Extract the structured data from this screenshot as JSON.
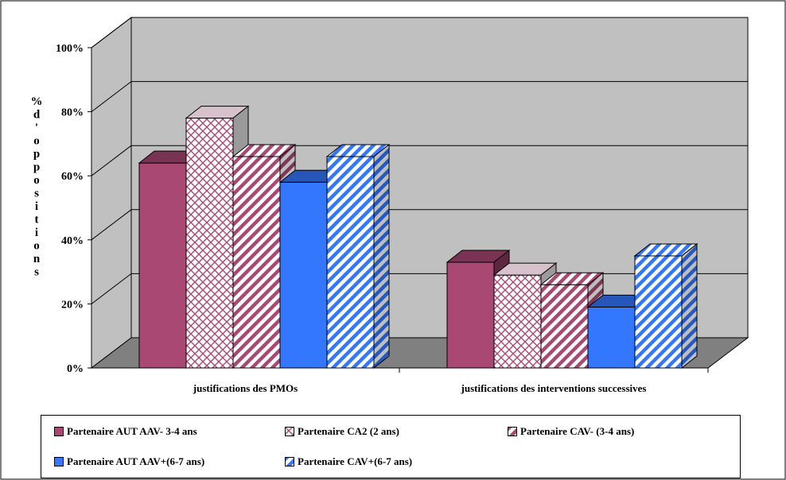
{
  "chart_data": {
    "type": "bar",
    "style": "3d-clustered",
    "categories": [
      "justifications des PMOs",
      "justifications des interventions successives"
    ],
    "series": [
      {
        "name": "Partenaire AUT AAV- 3-4 ans",
        "values": [
          64,
          33
        ],
        "color": "#A94873",
        "pattern": "solid"
      },
      {
        "name": "Partenaire CA2 (2 ans)",
        "values": [
          78,
          29
        ],
        "color": "#A94873",
        "pattern": "lattice"
      },
      {
        "name": "Partenaire CAV- (3-4 ans)",
        "values": [
          66,
          26
        ],
        "color": "#A94873",
        "pattern": "diagonal"
      },
      {
        "name": "Partenaire AUT AAV+(6-7 ans)",
        "values": [
          58,
          19
        ],
        "color": "#3377FF",
        "pattern": "solid"
      },
      {
        "name": "Partenaire CAV+(6-7 ans)",
        "values": [
          66,
          35
        ],
        "color": "#3377FF",
        "pattern": "diagonal"
      }
    ],
    "yticks": [
      "0%",
      "20%",
      "40%",
      "60%",
      "80%",
      "100%"
    ],
    "ylim": [
      0,
      100
    ],
    "ylabel": "% d' oppositions",
    "wall_color": "#C0C0C0",
    "floor_color": "#808080",
    "grid": true,
    "legend_position": "bottom"
  }
}
